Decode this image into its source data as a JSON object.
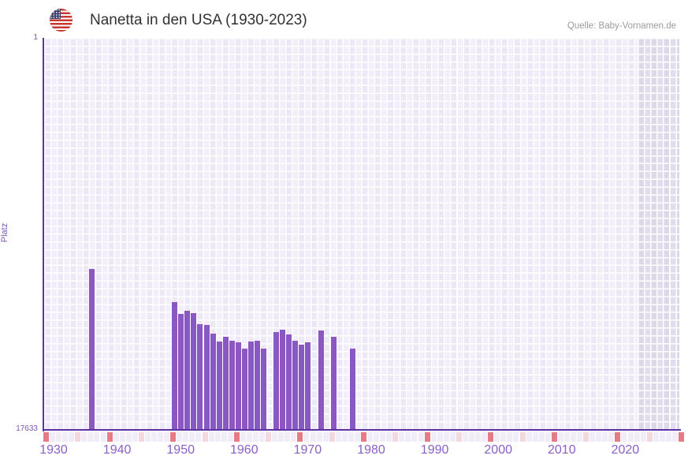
{
  "header": {
    "title": "Nanetta in den USA (1930-2023)",
    "source": "Quelle: Baby-Vornamen.de",
    "flag_icon": "us-flag-icon"
  },
  "chart_data": {
    "type": "bar",
    "title": "Nanetta in den USA (1930-2023)",
    "xlabel": "",
    "ylabel": "Platz",
    "y_axis": {
      "top_tick_label": "1",
      "bottom_tick_label": "17633",
      "min": 1,
      "max": 17633,
      "reversed": true,
      "note": "rank 1 is best; bars rise from bottom toward rank value"
    },
    "x_axis": {
      "range": [
        1930,
        2030
      ],
      "tick_labels": [
        "1930",
        "1940",
        "1950",
        "1960",
        "1970",
        "1980",
        "1990",
        "2000",
        "2010",
        "2020"
      ],
      "last_data_year": 2023,
      "future_region_start": 2023.4
    },
    "bars": [
      {
        "year": 1937,
        "rank": 10400
      },
      {
        "year": 1950,
        "rank": 11920
      },
      {
        "year": 1951,
        "rank": 12460
      },
      {
        "year": 1952,
        "rank": 12310
      },
      {
        "year": 1953,
        "rank": 12410
      },
      {
        "year": 1954,
        "rank": 12910
      },
      {
        "year": 1955,
        "rank": 12930
      },
      {
        "year": 1956,
        "rank": 13320
      },
      {
        "year": 1957,
        "rank": 13700
      },
      {
        "year": 1958,
        "rank": 13490
      },
      {
        "year": 1959,
        "rank": 13660
      },
      {
        "year": 1960,
        "rank": 13720
      },
      {
        "year": 1961,
        "rank": 14000
      },
      {
        "year": 1962,
        "rank": 13700
      },
      {
        "year": 1963,
        "rank": 13650
      },
      {
        "year": 1964,
        "rank": 14020
      },
      {
        "year": 1966,
        "rank": 13260
      },
      {
        "year": 1967,
        "rank": 13140
      },
      {
        "year": 1968,
        "rank": 13380
      },
      {
        "year": 1969,
        "rank": 13650
      },
      {
        "year": 1970,
        "rank": 13830
      },
      {
        "year": 1971,
        "rank": 13740
      },
      {
        "year": 1973,
        "rank": 13190
      },
      {
        "year": 1975,
        "rank": 13460
      },
      {
        "year": 1978,
        "rank": 14020
      }
    ],
    "colors": {
      "bar": "#8a57c3",
      "axis": "#5c33a2",
      "tick_text": "#8a5fc8",
      "strip_decade": "#e57c85",
      "strip_half_decade": "#f5d8de",
      "strip_default": "#f1edf8"
    },
    "legend": null,
    "grid": true
  },
  "year_strip": {
    "start_year": 1930,
    "end_year": 2030,
    "decade_color": "#e57c85",
    "half_decade_color": "#f5d8de",
    "default_color": "#f1edf8"
  }
}
